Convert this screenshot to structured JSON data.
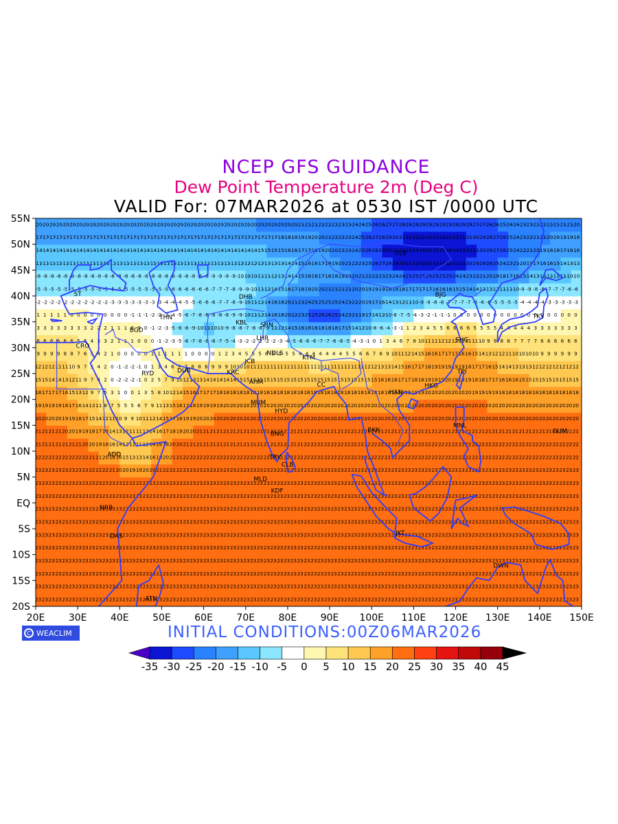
{
  "header": {
    "title": "NCEP GFS GUIDANCE",
    "subtitle": "Dew Point Temperature 2m (Deg C)",
    "valid": "VALID For: 07MAR2026 at 0530 IST /0000 UTC"
  },
  "footer": {
    "logo_text": "WEACLIM",
    "initial": "INITIAL  CONDITIONS:00Z06MAR2026"
  },
  "axes": {
    "lat_labels": [
      "55N",
      "50N",
      "45N",
      "40N",
      "35N",
      "30N",
      "25N",
      "20N",
      "15N",
      "10N",
      "5N",
      "EQ",
      "5S",
      "10S",
      "15S",
      "20S"
    ],
    "lon_labels": [
      "20E",
      "30E",
      "40E",
      "50E",
      "60E",
      "70E",
      "80E",
      "90E",
      "100E",
      "110E",
      "120E",
      "130E",
      "140E",
      "150E"
    ]
  },
  "colorbar": {
    "labels": [
      "-35",
      "-30",
      "-25",
      "-20",
      "-15",
      "-10",
      "-5",
      "0",
      "5",
      "10",
      "15",
      "20",
      "25",
      "30",
      "35",
      "40",
      "45"
    ],
    "colors": [
      "#4b00c8",
      "#0a14d2",
      "#1e4bff",
      "#2a82ff",
      "#3fa0ff",
      "#5ac8ff",
      "#8be6ff",
      "#ffffff",
      "#fff6b0",
      "#ffe27a",
      "#ffc850",
      "#ffa028",
      "#ff6e10",
      "#ff4010",
      "#e61410",
      "#c00a0a",
      "#96000a",
      "#000000"
    ]
  },
  "stations": [
    {
      "id": "ST",
      "lon": 30,
      "lat": 40
    },
    {
      "id": "BGD",
      "lon": 44,
      "lat": 33
    },
    {
      "id": "THN",
      "lon": 51,
      "lat": 35.5
    },
    {
      "id": "KBL",
      "lon": 69,
      "lat": 34.5
    },
    {
      "id": "DHB",
      "lon": 70,
      "lat": 39.5
    },
    {
      "id": "SRN",
      "lon": 75,
      "lat": 34
    },
    {
      "id": "LHR",
      "lon": 74,
      "lat": 31.5
    },
    {
      "id": "NDLS",
      "lon": 77,
      "lat": 28.6
    },
    {
      "id": "JCB",
      "lon": 71,
      "lat": 27
    },
    {
      "id": "KTM",
      "lon": 85,
      "lat": 27.7
    },
    {
      "id": "AHM",
      "lon": 72.5,
      "lat": 23
    },
    {
      "id": "MUM",
      "lon": 73,
      "lat": 19
    },
    {
      "id": "HYD",
      "lon": 78.5,
      "lat": 17.4
    },
    {
      "id": "CC",
      "lon": 88,
      "lat": 22.5
    },
    {
      "id": "BNG",
      "lon": 77.5,
      "lat": 13
    },
    {
      "id": "TRV",
      "lon": 77,
      "lat": 8.5
    },
    {
      "id": "CLB",
      "lon": 80,
      "lat": 7
    },
    {
      "id": "MLD",
      "lon": 73.5,
      "lat": 4.2
    },
    {
      "id": "RYD",
      "lon": 46.7,
      "lat": 24.7
    },
    {
      "id": "DUB",
      "lon": 55.3,
      "lat": 25.2
    },
    {
      "id": "KRC",
      "lon": 67,
      "lat": 24.9
    },
    {
      "id": "ADD",
      "lon": 38.7,
      "lat": 9
    },
    {
      "id": "NRB",
      "lon": 36.8,
      "lat": -1.3
    },
    {
      "id": "DAS",
      "lon": 39.2,
      "lat": -6.8
    },
    {
      "id": "ATN",
      "lon": 47.5,
      "lat": -18.9
    },
    {
      "id": "CRO",
      "lon": 31.2,
      "lat": 30
    },
    {
      "id": "BKK",
      "lon": 100.5,
      "lat": 13.7
    },
    {
      "id": "HAN",
      "lon": 105.8,
      "lat": 21
    },
    {
      "id": "HKG",
      "lon": 114.2,
      "lat": 22.3
    },
    {
      "id": "TPI",
      "lon": 121.5,
      "lat": 25
    },
    {
      "id": "SHG",
      "lon": 121.5,
      "lat": 31.2
    },
    {
      "id": "BJG",
      "lon": 116.4,
      "lat": 39.9
    },
    {
      "id": "TKY",
      "lon": 139.7,
      "lat": 35.7
    },
    {
      "id": "ULB",
      "lon": 106.9,
      "lat": 47.9
    },
    {
      "id": "MNL",
      "lon": 121,
      "lat": 14.6
    },
    {
      "id": "JKT",
      "lon": 106.8,
      "lat": -6.2
    },
    {
      "id": "DWN",
      "lon": 130.8,
      "lat": -12.5
    },
    {
      "id": "GUM",
      "lon": 144.8,
      "lat": 13.5
    },
    {
      "id": "KDF",
      "lon": 77.5,
      "lat": 2
    }
  ]
}
